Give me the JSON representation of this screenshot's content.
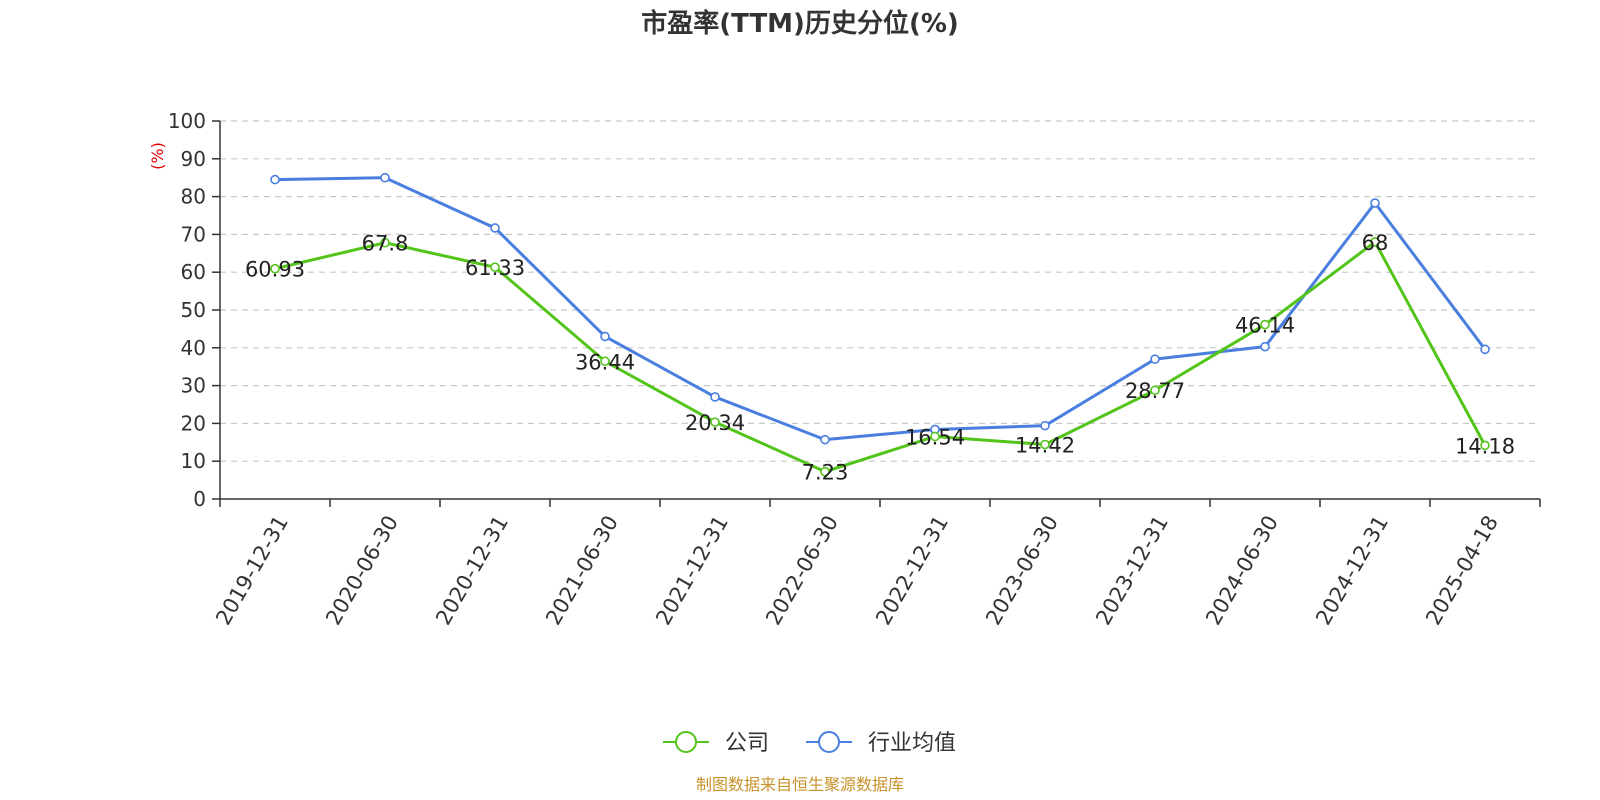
{
  "chart_data": {
    "type": "line",
    "title": "市盈率(TTM)历史分位(%)",
    "ylabel": "(%)",
    "ylim": [
      0,
      100
    ],
    "yticks": [
      0,
      10,
      20,
      30,
      40,
      50,
      60,
      70,
      80,
      90,
      100
    ],
    "categories": [
      "2019-12-31",
      "2020-06-30",
      "2020-12-31",
      "2021-06-30",
      "2021-12-31",
      "2022-06-30",
      "2022-12-31",
      "2023-06-30",
      "2023-12-31",
      "2024-06-30",
      "2024-12-31",
      "2025-04-18"
    ],
    "series": [
      {
        "name": "公司",
        "color": "#52c41a",
        "values": [
          60.93,
          67.8,
          61.33,
          36.44,
          20.34,
          7.23,
          16.54,
          14.42,
          28.77,
          46.14,
          68,
          14.18
        ],
        "labels": [
          "60.93",
          "67.8",
          "61.33",
          "36.44",
          "20.34",
          "7.23",
          "16.54",
          "14.42",
          "28.77",
          "46.14",
          "68",
          "14.18"
        ]
      },
      {
        "name": "行业均值",
        "color": "#4a7fe0",
        "values": [
          84.5,
          85,
          71.7,
          43,
          27,
          15.7,
          18.4,
          19.4,
          37,
          40.3,
          78.3,
          39.6
        ]
      }
    ],
    "grid": true,
    "legend_position": "bottom-center"
  },
  "source": {
    "text": "制图数据来自恒生聚源数据库",
    "color": "#c8922a"
  }
}
